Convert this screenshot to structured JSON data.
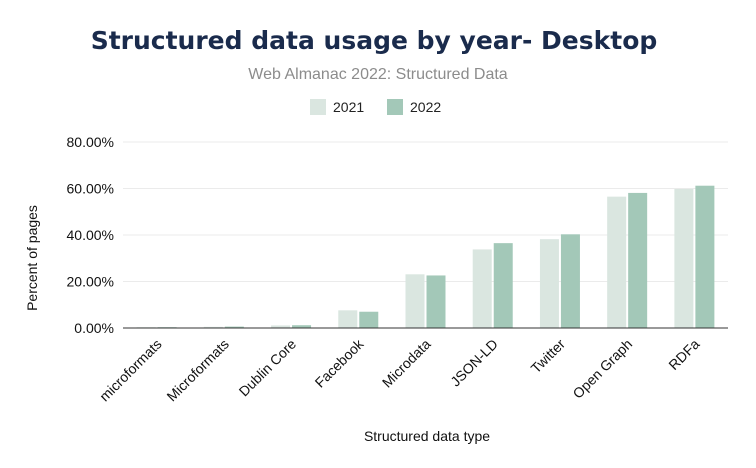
{
  "chart_data": {
    "type": "bar",
    "title": "Structured data usage by year- Desktop",
    "subtitle": "Web Almanac 2022: Structured Data",
    "xlabel": "Structured data type",
    "ylabel": "Percent of pages",
    "ylim": [
      0,
      80
    ],
    "yticks": [
      0,
      20,
      40,
      60,
      80
    ],
    "ytick_labels": [
      "0.00%",
      "20.00%",
      "40.00%",
      "60.00%",
      "80.00%"
    ],
    "grid": true,
    "legend_position": "top-center",
    "categories": [
      "microformats",
      "Microformats",
      "Dublin Core",
      "Facebook",
      "Microdata",
      "JSON-LD",
      "Twitter",
      "Open Graph",
      "RDFa"
    ],
    "series": [
      {
        "name": "2021",
        "color": "#dae6e0",
        "values": [
          0.1,
          0.5,
          1.1,
          7.6,
          23.1,
          33.8,
          38.2,
          56.5,
          59.8
        ]
      },
      {
        "name": "2022",
        "color": "#a3c8b8",
        "values": [
          0.1,
          0.6,
          1.2,
          7.0,
          22.6,
          36.5,
          40.3,
          58.1,
          61.2
        ]
      }
    ]
  }
}
